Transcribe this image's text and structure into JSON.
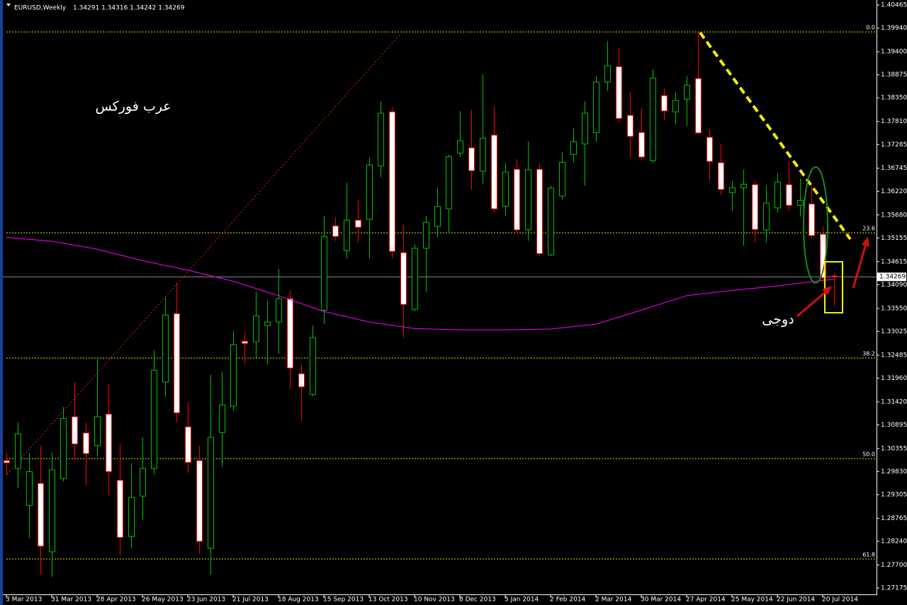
{
  "chart_data": {
    "type": "candlestick",
    "title": "EURUSD,Weekly",
    "header_ohlc": [
      1.34291,
      1.34316,
      1.34242,
      1.34269
    ],
    "categories": [
      "3 Mar 2013",
      null,
      null,
      null,
      "31 Mar 2013",
      null,
      null,
      null,
      "28 Apr 2013",
      null,
      null,
      null,
      "26 May 2013",
      null,
      null,
      null,
      "23 Jun 2013",
      null,
      null,
      null,
      "21 Jul 2013",
      null,
      null,
      null,
      "18 Aug 2013",
      null,
      null,
      null,
      "15 Sep 2013",
      null,
      null,
      null,
      "13 Oct 2013",
      null,
      null,
      null,
      "10 Nov 2013",
      null,
      null,
      null,
      "8 Dec 2013",
      null,
      null,
      null,
      "5 Jan 2014",
      null,
      null,
      null,
      "2 Feb 2014",
      null,
      null,
      null,
      "2 Mar 2014",
      null,
      null,
      null,
      "30 Mar 2014",
      null,
      null,
      null,
      "27 Apr 2014",
      null,
      null,
      null,
      "25 May 2014",
      null,
      null,
      null,
      "22 Jun 2014",
      null,
      null,
      null,
      "20 Jul 2014",
      null
    ],
    "open": [
      1.3008,
      1.299,
      1.2906,
      1.2956,
      1.28,
      1.2967,
      1.3108,
      1.3071,
      1.3042,
      1.3114,
      1.2963,
      1.2835,
      1.2927,
      1.299,
      1.3187,
      1.3343,
      1.3085,
      1.3008,
      1.2808,
      1.3072,
      1.3132,
      1.328,
      1.3279,
      1.3316,
      1.3324,
      1.3377,
      1.3206,
      1.3159,
      1.3351,
      1.3543,
      1.3487,
      1.3556,
      1.3558,
      1.368,
      1.3803,
      1.3482,
      1.3353,
      1.3492,
      1.3542,
      1.3582,
      1.3709,
      1.3721,
      1.3668,
      1.375,
      1.3588,
      1.3672,
      1.3534,
      1.3672,
      1.3477,
      1.3611,
      1.3706,
      1.373,
      1.3756,
      1.3871,
      1.3906,
      1.3795,
      1.3756,
      1.3692,
      1.384,
      1.3803,
      1.3832,
      1.3879,
      1.3745,
      1.3687,
      1.3619,
      1.363,
      1.3637,
      1.3534,
      1.3584,
      1.3637,
      1.359,
      1.3593,
      1.3524,
      1.3429
    ],
    "high": [
      1.3026,
      1.3095,
      1.3026,
      1.3042,
      1.3026,
      1.313,
      1.3187,
      1.3095,
      1.324,
      1.3182,
      1.3045,
      1.3001,
      1.3061,
      1.3259,
      1.338,
      1.3413,
      1.3142,
      1.3042,
      1.3203,
      1.3211,
      1.3303,
      1.33,
      1.3393,
      1.3372,
      1.3445,
      1.3396,
      1.3227,
      1.3316,
      1.3566,
      1.3563,
      1.3642,
      1.3601,
      1.37,
      1.3827,
      1.3813,
      1.3545,
      1.3501,
      1.3566,
      1.363,
      1.3706,
      1.3805,
      1.3808,
      1.3888,
      1.3816,
      1.3687,
      1.3695,
      1.3735,
      1.3684,
      1.3635,
      1.3711,
      1.3767,
      1.3827,
      1.3885,
      1.3964,
      1.3948,
      1.3848,
      1.3811,
      1.3901,
      1.3856,
      1.3848,
      1.3884,
      1.3985,
      1.3763,
      1.3729,
      1.3646,
      1.3671,
      1.3646,
      1.3635,
      1.3663,
      1.369,
      1.365,
      1.3635,
      1.3542,
      1.3435
    ],
    "low": [
      1.2974,
      1.2945,
      1.2832,
      1.2748,
      1.2743,
      1.2961,
      1.3009,
      1.295,
      1.3017,
      1.2929,
      1.2792,
      1.2808,
      1.2872,
      1.2977,
      1.3154,
      1.3095,
      1.298,
      1.2796,
      1.2748,
      1.2993,
      1.3122,
      1.3227,
      1.3243,
      1.3227,
      1.3251,
      1.3171,
      1.3098,
      1.3154,
      1.3319,
      1.3509,
      1.3469,
      1.3506,
      1.3469,
      1.3654,
      1.3469,
      1.3288,
      1.3348,
      1.3393,
      1.3517,
      1.3526,
      1.37,
      1.3626,
      1.3638,
      1.3574,
      1.3566,
      1.3526,
      1.3509,
      1.3474,
      1.3474,
      1.3603,
      1.3687,
      1.3635,
      1.3735,
      1.3851,
      1.378,
      1.37,
      1.3692,
      1.3687,
      1.3784,
      1.3775,
      1.3771,
      1.3751,
      1.3646,
      1.3614,
      1.3577,
      1.3498,
      1.3506,
      1.3506,
      1.3574,
      1.3577,
      1.3564,
      1.3513,
      1.3413,
      1.3361
    ],
    "close": [
      1.3003,
      1.3069,
      1.2983,
      1.2813,
      1.2987,
      1.3104,
      1.3046,
      1.3024,
      1.3108,
      1.2983,
      1.2833,
      1.2924,
      1.299,
      1.3214,
      1.334,
      1.3117,
      1.3004,
      1.2824,
      1.3061,
      1.3135,
      1.3272,
      1.3275,
      1.3338,
      1.3324,
      1.3377,
      1.3219,
      1.3176,
      1.3288,
      1.3519,
      1.3519,
      1.3556,
      1.354,
      1.3682,
      1.38,
      1.3485,
      1.3364,
      1.3492,
      1.3551,
      1.3587,
      1.3701,
      1.3737,
      1.3669,
      1.3743,
      1.3582,
      1.3666,
      1.3534,
      1.3671,
      1.348,
      1.3629,
      1.3688,
      1.3735,
      1.38,
      1.3871,
      1.3908,
      1.3788,
      1.3747,
      1.37,
      1.388,
      1.3805,
      1.3829,
      1.3864,
      1.3755,
      1.369,
      1.3626,
      1.363,
      1.3638,
      1.3535,
      1.3595,
      1.3643,
      1.359,
      1.3601,
      1.3521,
      1.3425,
      1.3427
    ],
    "colors": {
      "bull_body": "#000000",
      "bull_line": "#00c000",
      "bear_body": "#ffffff",
      "bear_line": "#ff0000"
    },
    "moving_average": {
      "color": "#ff00ff",
      "x": [
        0,
        4,
        8,
        12,
        16,
        20,
        24,
        28,
        32,
        36,
        40,
        44,
        48,
        52,
        56,
        60,
        64,
        68,
        72,
        73
      ],
      "values": [
        1.3517,
        1.3508,
        1.349,
        1.3464,
        1.3442,
        1.3417,
        1.3384,
        1.3348,
        1.3324,
        1.3309,
        1.3306,
        1.3306,
        1.3308,
        1.3319,
        1.3351,
        1.3384,
        1.3396,
        1.3406,
        1.3419,
        1.3421
      ]
    },
    "fib_levels": [
      {
        "label": "0.0",
        "value": 1.39852
      },
      {
        "label": "23.6",
        "value": 1.35272
      },
      {
        "label": "38.2",
        "value": 1.32417
      },
      {
        "label": "50.0",
        "value": 1.30126
      },
      {
        "label": "61.8",
        "value": 1.27836
      }
    ],
    "bid": 1.34269,
    "ylim": [
      1.2703,
      1.4058
    ],
    "yticks": [
      1.40465,
      {
        "value": 1.3994,
        "label": "1.39940"
      },
      {
        "value": 1.394,
        "label": "1.39400"
      },
      1.38875,
      {
        "value": 1.3835,
        "label": "1.38350"
      },
      {
        "value": 1.3781,
        "label": "1.37810"
      },
      1.37285,
      1.36745,
      {
        "value": 1.3622,
        "label": "1.36220"
      },
      {
        "value": 1.3568,
        "label": "1.35680"
      },
      1.35155,
      1.34615,
      {
        "value": 1.3409,
        "label": "1.34090"
      },
      {
        "value": 1.3355,
        "label": "1.33550"
      },
      1.33025,
      1.32485,
      {
        "value": 1.3196,
        "label": "1.31960"
      },
      {
        "value": 1.3142,
        "label": "1.31420"
      },
      1.30895,
      1.30355,
      {
        "value": 1.2983,
        "label": "1.29830"
      },
      1.29305,
      1.28765,
      {
        "value": 1.2824,
        "label": "1.28240"
      },
      {
        "value": 1.277,
        "label": "1.27700"
      },
      1.27175
    ],
    "annotations": [
      "عرب فوركس",
      "دوجى"
    ]
  }
}
